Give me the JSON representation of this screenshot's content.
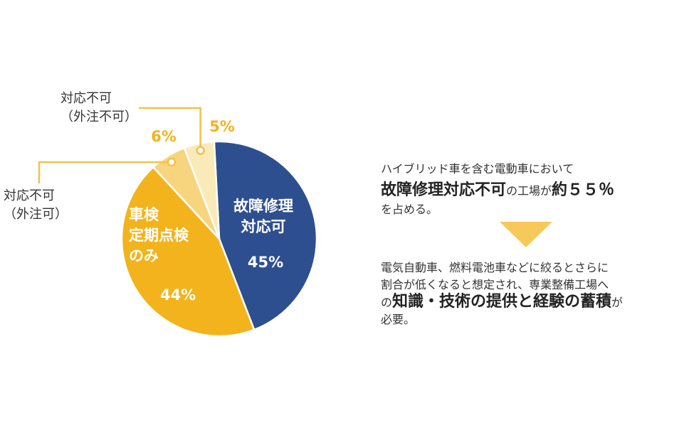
{
  "chart_data": {
    "type": "pie",
    "slices": [
      {
        "label": "故障修理\n対応可",
        "value": 45,
        "value_label": "45%",
        "color": "#2e4f8f"
      },
      {
        "label": "車検\n定期点検\nのみ",
        "value": 44,
        "value_label": "44%",
        "color": "#f3b31c"
      },
      {
        "label": "対応不可\n（外注可）",
        "value": 6,
        "value_label": "6%",
        "color": "#f7d47e"
      },
      {
        "label": "対応不可\n（外注不可）",
        "value": 5,
        "value_label": "5%",
        "color": "#faeab8"
      }
    ]
  },
  "colors": {
    "callout_line": "#f3c14a",
    "accent_orange": "#f3b31c",
    "navy": "#2e4f8f",
    "arrow": "#f7c95a"
  },
  "summary": {
    "line1": "ハイブリッド車を含む電動車において",
    "line2_bold": "故障修理対応不可",
    "line2_mid": "の工場が",
    "line2_bold2": "約５５％",
    "line3": "を占める。"
  },
  "detail": {
    "line1": "電気自動車、燃料電池車などに絞るとさらに",
    "line2": "割合が低くなると想定され、専業整備工場へ",
    "line3_pre": "の",
    "line3_bold": "知識・技術の提供と経験の蓄積",
    "line3_post": "が",
    "line4": "必要。"
  }
}
